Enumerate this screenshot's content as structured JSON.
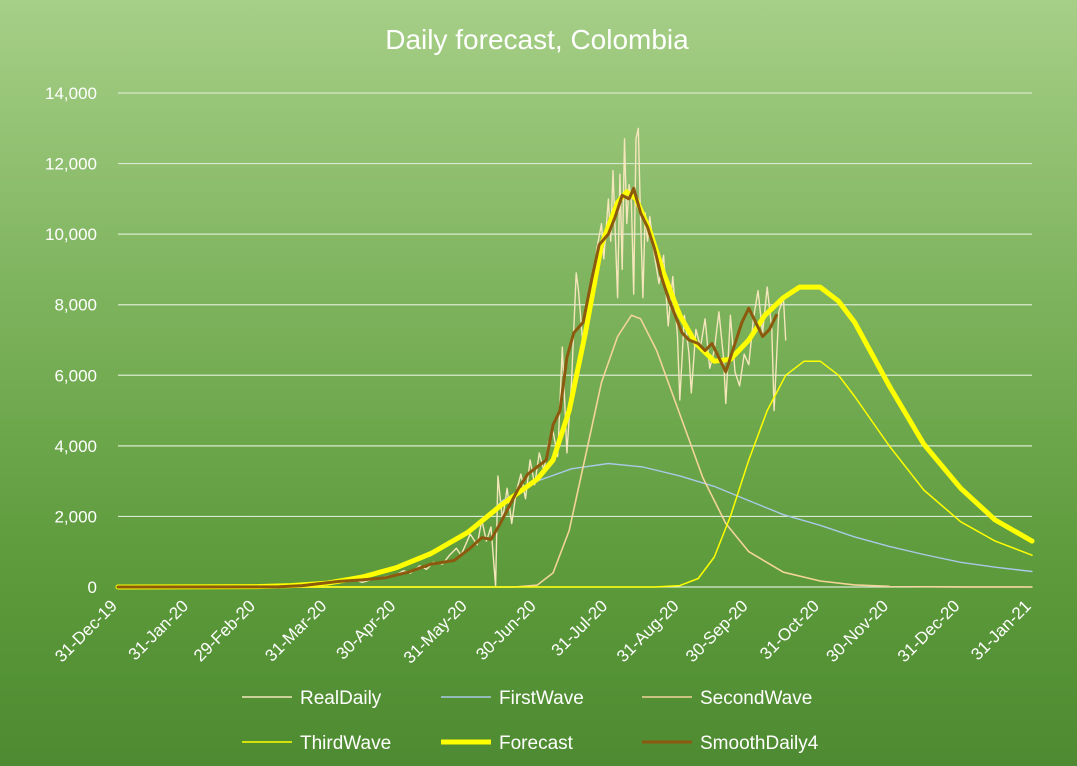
{
  "chart_data": {
    "type": "line",
    "title": "Daily forecast, Colombia",
    "xlabel": "",
    "ylabel": "",
    "ylim": [
      0,
      14000
    ],
    "yticks": [
      0,
      2000,
      4000,
      6000,
      8000,
      10000,
      12000,
      14000
    ],
    "ytick_labels": [
      "0",
      "2,000",
      "4,000",
      "6,000",
      "8,000",
      "10,000",
      "12,000",
      "14,000"
    ],
    "xlim": [
      "2019-12-31",
      "2021-01-31"
    ],
    "xticks": [
      "2019-12-31",
      "2020-01-31",
      "2020-02-29",
      "2020-03-31",
      "2020-04-30",
      "2020-05-31",
      "2020-06-30",
      "2020-07-31",
      "2020-08-31",
      "2020-09-30",
      "2020-10-31",
      "2020-11-30",
      "2020-12-31",
      "2021-01-31"
    ],
    "xtick_labels": [
      "31-Dec-19",
      "31-Jan-20",
      "29-Feb-20",
      "31-Mar-20",
      "30-Apr-20",
      "31-May-20",
      "30-Jun-20",
      "31-Jul-20",
      "31-Aug-20",
      "30-Sep-20",
      "31-Oct-20",
      "30-Nov-20",
      "31-Dec-20",
      "31-Jan-21"
    ],
    "grid": true,
    "legend_position": "bottom",
    "series": [
      {
        "name": "RealDaily",
        "color": "#f5e6bc",
        "width": 1.4,
        "points": [
          [
            "2019-12-31",
            0
          ],
          [
            "2020-03-06",
            1
          ],
          [
            "2020-03-15",
            20
          ],
          [
            "2020-03-20",
            50
          ],
          [
            "2020-03-25",
            90
          ],
          [
            "2020-03-30",
            140
          ],
          [
            "2020-04-01",
            120
          ],
          [
            "2020-04-05",
            140
          ],
          [
            "2020-04-10",
            250
          ],
          [
            "2020-04-15",
            130
          ],
          [
            "2020-04-20",
            230
          ],
          [
            "2020-04-25",
            290
          ],
          [
            "2020-04-30",
            350
          ],
          [
            "2020-05-03",
            460
          ],
          [
            "2020-05-06",
            390
          ],
          [
            "2020-05-10",
            600
          ],
          [
            "2020-05-13",
            500
          ],
          [
            "2020-05-16",
            700
          ],
          [
            "2020-05-20",
            650
          ],
          [
            "2020-05-23",
            900
          ],
          [
            "2020-05-26",
            1100
          ],
          [
            "2020-05-28",
            900
          ],
          [
            "2020-06-01",
            1500
          ],
          [
            "2020-06-04",
            1200
          ],
          [
            "2020-06-06",
            1900
          ],
          [
            "2020-06-08",
            1300
          ],
          [
            "2020-06-10",
            1700
          ],
          [
            "2020-06-12",
            20
          ],
          [
            "2020-06-13",
            3150
          ],
          [
            "2020-06-15",
            1900
          ],
          [
            "2020-06-17",
            2800
          ],
          [
            "2020-06-19",
            1800
          ],
          [
            "2020-06-21",
            2700
          ],
          [
            "2020-06-23",
            3200
          ],
          [
            "2020-06-25",
            2500
          ],
          [
            "2020-06-27",
            3600
          ],
          [
            "2020-06-29",
            2900
          ],
          [
            "2020-07-01",
            3800
          ],
          [
            "2020-07-03",
            3300
          ],
          [
            "2020-07-05",
            4100
          ],
          [
            "2020-07-07",
            4400
          ],
          [
            "2020-07-09",
            3700
          ],
          [
            "2020-07-11",
            6800
          ],
          [
            "2020-07-13",
            3800
          ],
          [
            "2020-07-15",
            5800
          ],
          [
            "2020-07-17",
            8900
          ],
          [
            "2020-07-18",
            8400
          ],
          [
            "2020-07-20",
            6800
          ],
          [
            "2020-07-22",
            7700
          ],
          [
            "2020-07-24",
            8300
          ],
          [
            "2020-07-26",
            9600
          ],
          [
            "2020-07-28",
            10300
          ],
          [
            "2020-07-29",
            9300
          ],
          [
            "2020-07-31",
            11000
          ],
          [
            "2020-08-01",
            9800
          ],
          [
            "2020-08-02",
            11800
          ],
          [
            "2020-08-04",
            8200
          ],
          [
            "2020-08-05",
            11700
          ],
          [
            "2020-08-06",
            9000
          ],
          [
            "2020-08-07",
            12700
          ],
          [
            "2020-08-08",
            10300
          ],
          [
            "2020-08-09",
            11400
          ],
          [
            "2020-08-10",
            10900
          ],
          [
            "2020-08-11",
            8300
          ],
          [
            "2020-08-12",
            12700
          ],
          [
            "2020-08-13",
            13000
          ],
          [
            "2020-08-14",
            10400
          ],
          [
            "2020-08-15",
            8200
          ],
          [
            "2020-08-16",
            10600
          ],
          [
            "2020-08-17",
            9800
          ],
          [
            "2020-08-18",
            10500
          ],
          [
            "2020-08-20",
            9400
          ],
          [
            "2020-08-22",
            8600
          ],
          [
            "2020-08-24",
            9400
          ],
          [
            "2020-08-26",
            7400
          ],
          [
            "2020-08-28",
            8800
          ],
          [
            "2020-08-30",
            7100
          ],
          [
            "2020-08-31",
            5300
          ],
          [
            "2020-09-02",
            7700
          ],
          [
            "2020-09-04",
            6600
          ],
          [
            "2020-09-05",
            5500
          ],
          [
            "2020-09-07",
            7300
          ],
          [
            "2020-09-09",
            6800
          ],
          [
            "2020-09-11",
            7600
          ],
          [
            "2020-09-13",
            6200
          ],
          [
            "2020-09-15",
            6700
          ],
          [
            "2020-09-17",
            7800
          ],
          [
            "2020-09-19",
            6500
          ],
          [
            "2020-09-20",
            5200
          ],
          [
            "2020-09-22",
            7700
          ],
          [
            "2020-09-24",
            6100
          ],
          [
            "2020-09-26",
            5700
          ],
          [
            "2020-09-28",
            6600
          ],
          [
            "2020-09-30",
            6300
          ],
          [
            "2020-10-02",
            7600
          ],
          [
            "2020-10-04",
            8400
          ],
          [
            "2020-10-06",
            7200
          ],
          [
            "2020-10-08",
            8500
          ],
          [
            "2020-10-10",
            7300
          ],
          [
            "2020-10-11",
            5000
          ],
          [
            "2020-10-13",
            7800
          ],
          [
            "2020-10-15",
            8200
          ],
          [
            "2020-10-16",
            7000
          ]
        ]
      },
      {
        "name": "FirstWave",
        "color": "#a9c9e6",
        "width": 1.4,
        "points": [
          [
            "2019-12-31",
            0
          ],
          [
            "2020-02-29",
            10
          ],
          [
            "2020-03-31",
            110
          ],
          [
            "2020-04-30",
            550
          ],
          [
            "2020-05-31",
            1500
          ],
          [
            "2020-06-15",
            2450
          ],
          [
            "2020-06-30",
            3000
          ],
          [
            "2020-07-15",
            3350
          ],
          [
            "2020-07-31",
            3500
          ],
          [
            "2020-08-15",
            3400
          ],
          [
            "2020-08-31",
            3150
          ],
          [
            "2020-09-15",
            2850
          ],
          [
            "2020-09-30",
            2450
          ],
          [
            "2020-10-15",
            2050
          ],
          [
            "2020-10-31",
            1750
          ],
          [
            "2020-11-15",
            1420
          ],
          [
            "2020-11-30",
            1150
          ],
          [
            "2020-12-15",
            920
          ],
          [
            "2020-12-31",
            700
          ],
          [
            "2021-01-15",
            560
          ],
          [
            "2021-01-31",
            440
          ]
        ]
      },
      {
        "name": "SecondWave",
        "color": "#f3d49b",
        "width": 1.6,
        "points": [
          [
            "2019-12-31",
            0
          ],
          [
            "2020-06-20",
            0
          ],
          [
            "2020-06-30",
            50
          ],
          [
            "2020-07-07",
            400
          ],
          [
            "2020-07-14",
            1600
          ],
          [
            "2020-07-21",
            3700
          ],
          [
            "2020-07-28",
            5800
          ],
          [
            "2020-08-04",
            7100
          ],
          [
            "2020-08-10",
            7700
          ],
          [
            "2020-08-14",
            7600
          ],
          [
            "2020-08-21",
            6700
          ],
          [
            "2020-08-31",
            4900
          ],
          [
            "2020-09-10",
            3100
          ],
          [
            "2020-09-20",
            1800
          ],
          [
            "2020-09-30",
            1000
          ],
          [
            "2020-10-15",
            420
          ],
          [
            "2020-10-31",
            170
          ],
          [
            "2020-11-15",
            60
          ],
          [
            "2020-11-30",
            20
          ],
          [
            "2020-12-31",
            2
          ],
          [
            "2021-01-31",
            0
          ]
        ]
      },
      {
        "name": "ThirdWave",
        "color": "#ffff00",
        "width": 1.5,
        "points": [
          [
            "2019-12-31",
            0
          ],
          [
            "2020-08-20",
            0
          ],
          [
            "2020-08-31",
            40
          ],
          [
            "2020-09-08",
            240
          ],
          [
            "2020-09-15",
            850
          ],
          [
            "2020-09-22",
            2000
          ],
          [
            "2020-09-30",
            3600
          ],
          [
            "2020-10-08",
            5000
          ],
          [
            "2020-10-16",
            6000
          ],
          [
            "2020-10-24",
            6400
          ],
          [
            "2020-10-31",
            6400
          ],
          [
            "2020-11-08",
            6000
          ],
          [
            "2020-11-15",
            5400
          ],
          [
            "2020-11-30",
            4000
          ],
          [
            "2020-12-15",
            2750
          ],
          [
            "2020-12-31",
            1850
          ],
          [
            "2021-01-15",
            1300
          ],
          [
            "2021-01-31",
            900
          ]
        ]
      },
      {
        "name": "Forecast",
        "color": "#ffff00",
        "width": 5,
        "points": [
          [
            "2019-12-31",
            0
          ],
          [
            "2020-02-29",
            10
          ],
          [
            "2020-03-15",
            40
          ],
          [
            "2020-03-31",
            110
          ],
          [
            "2020-04-15",
            280
          ],
          [
            "2020-04-30",
            550
          ],
          [
            "2020-05-15",
            950
          ],
          [
            "2020-05-31",
            1550
          ],
          [
            "2020-06-15",
            2350
          ],
          [
            "2020-06-30",
            3050
          ],
          [
            "2020-07-07",
            3600
          ],
          [
            "2020-07-14",
            5000
          ],
          [
            "2020-07-21",
            7200
          ],
          [
            "2020-07-28",
            9700
          ],
          [
            "2020-08-04",
            10900
          ],
          [
            "2020-08-08",
            11200
          ],
          [
            "2020-08-12",
            11000
          ],
          [
            "2020-08-18",
            10100
          ],
          [
            "2020-08-24",
            8900
          ],
          [
            "2020-08-31",
            7700
          ],
          [
            "2020-09-07",
            6900
          ],
          [
            "2020-09-15",
            6400
          ],
          [
            "2020-09-22",
            6450
          ],
          [
            "2020-09-30",
            7000
          ],
          [
            "2020-10-07",
            7700
          ],
          [
            "2020-10-15",
            8200
          ],
          [
            "2020-10-22",
            8500
          ],
          [
            "2020-10-31",
            8500
          ],
          [
            "2020-11-08",
            8100
          ],
          [
            "2020-11-15",
            7500
          ],
          [
            "2020-11-30",
            5700
          ],
          [
            "2020-12-15",
            4050
          ],
          [
            "2020-12-31",
            2800
          ],
          [
            "2021-01-15",
            1900
          ],
          [
            "2021-01-31",
            1300
          ]
        ]
      },
      {
        "name": "SmoothDaily4",
        "color": "#8b5a0f",
        "width": 3,
        "points": [
          [
            "2019-12-31",
            0
          ],
          [
            "2020-03-10",
            5
          ],
          [
            "2020-03-20",
            40
          ],
          [
            "2020-03-28",
            100
          ],
          [
            "2020-04-05",
            160
          ],
          [
            "2020-04-15",
            200
          ],
          [
            "2020-04-25",
            260
          ],
          [
            "2020-05-05",
            420
          ],
          [
            "2020-05-15",
            650
          ],
          [
            "2020-05-25",
            750
          ],
          [
            "2020-06-01",
            1100
          ],
          [
            "2020-06-06",
            1400
          ],
          [
            "2020-06-10",
            1350
          ],
          [
            "2020-06-14",
            1800
          ],
          [
            "2020-06-18",
            2300
          ],
          [
            "2020-06-22",
            2800
          ],
          [
            "2020-06-26",
            3200
          ],
          [
            "2020-06-30",
            3400
          ],
          [
            "2020-07-04",
            3600
          ],
          [
            "2020-07-07",
            4600
          ],
          [
            "2020-07-10",
            5000
          ],
          [
            "2020-07-13",
            6500
          ],
          [
            "2020-07-16",
            7200
          ],
          [
            "2020-07-20",
            7500
          ],
          [
            "2020-07-24",
            8800
          ],
          [
            "2020-07-27",
            9700
          ],
          [
            "2020-07-31",
            10000
          ],
          [
            "2020-08-03",
            10500
          ],
          [
            "2020-08-06",
            11100
          ],
          [
            "2020-08-09",
            11000
          ],
          [
            "2020-08-11",
            11300
          ],
          [
            "2020-08-14",
            10600
          ],
          [
            "2020-08-17",
            10200
          ],
          [
            "2020-08-20",
            9600
          ],
          [
            "2020-08-23",
            8800
          ],
          [
            "2020-08-26",
            8200
          ],
          [
            "2020-08-29",
            7700
          ],
          [
            "2020-09-01",
            7200
          ],
          [
            "2020-09-04",
            7000
          ],
          [
            "2020-09-08",
            6900
          ],
          [
            "2020-09-11",
            6700
          ],
          [
            "2020-09-14",
            6900
          ],
          [
            "2020-09-17",
            6500
          ],
          [
            "2020-09-20",
            6100
          ],
          [
            "2020-09-24",
            6900
          ],
          [
            "2020-09-27",
            7500
          ],
          [
            "2020-09-30",
            7900
          ],
          [
            "2020-10-03",
            7500
          ],
          [
            "2020-10-06",
            7100
          ],
          [
            "2020-10-09",
            7300
          ],
          [
            "2020-10-12",
            7700
          ]
        ]
      }
    ]
  }
}
